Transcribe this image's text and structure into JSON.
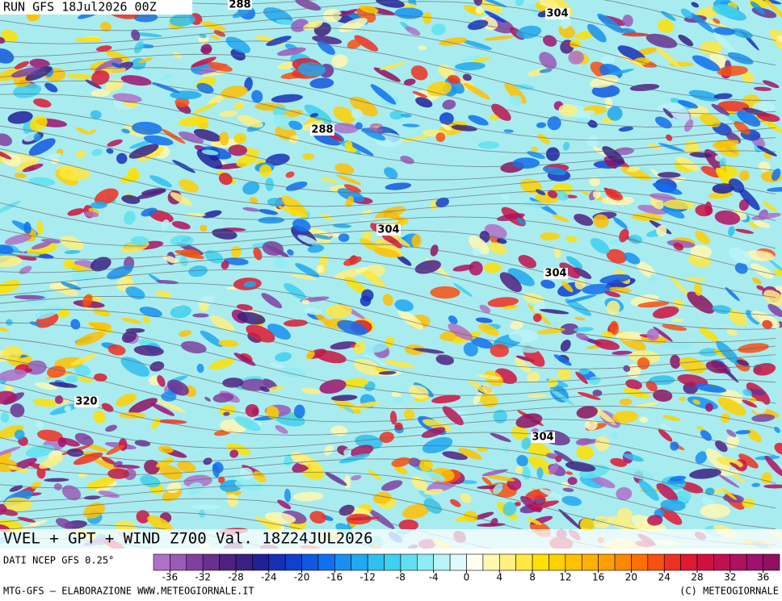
{
  "header": {
    "run": "RUN GFS 18Jul2026 00Z"
  },
  "map": {
    "contours": [
      "288",
      "288",
      "304",
      "304",
      "304",
      "304",
      "320"
    ]
  },
  "footer": {
    "title": "VVEL + GPT + WIND Z700 Val. 18Z24JUL2026",
    "source": "DATI NCEP GFS 0.25°",
    "credit": "MTG-GFS — ELABORAZIONE WWW.METEOGIORNALE.IT",
    "copyright": "(C) METEOGIORNALE"
  },
  "colorbar": {
    "lim": [
      -38,
      38
    ],
    "ticks": [
      -36,
      -32,
      -28,
      -24,
      -20,
      -16,
      -12,
      -8,
      -4,
      0,
      4,
      8,
      12,
      16,
      20,
      24,
      28,
      32,
      36
    ],
    "colors": [
      "#b070c8",
      "#9a5ab8",
      "#8040a0",
      "#6a3090",
      "#502080",
      "#3a2080",
      "#20209a",
      "#1830b8",
      "#1040d0",
      "#1058e0",
      "#1070f0",
      "#1890f0",
      "#20a8f0",
      "#30c0f0",
      "#40d0f0",
      "#60e0f0",
      "#90ecf4",
      "#b8f4f8",
      "#e0fafc",
      "#fffff0",
      "#fff8b0",
      "#fff080",
      "#ffe840",
      "#ffe000",
      "#ffd000",
      "#ffc000",
      "#ffb000",
      "#ffa000",
      "#ff8800",
      "#ff7000",
      "#f85010",
      "#f03020",
      "#e01830",
      "#d01040",
      "#c01050",
      "#b01060",
      "#a01070",
      "#900f60"
    ]
  }
}
